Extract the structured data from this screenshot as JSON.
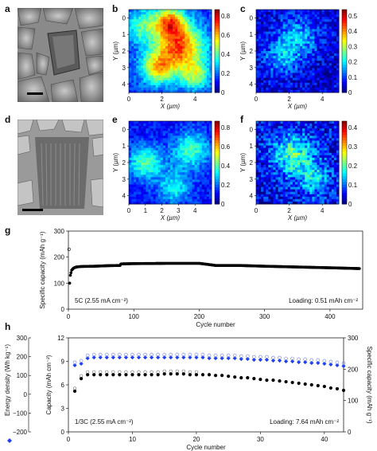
{
  "panels": {
    "a": "a",
    "b": "b",
    "c": "c",
    "d": "d",
    "e": "e",
    "f": "f",
    "g": "g",
    "h": "h"
  },
  "maps": {
    "y_label": "Y (µm)",
    "x_label": "X (µm)",
    "y_ticks": [
      "0",
      "1",
      "2",
      "3",
      "4"
    ],
    "x_ticks": [
      "0",
      "2",
      "4"
    ],
    "x_ticks_e": [
      "0",
      "1",
      "2",
      "3",
      "4"
    ],
    "cb_b": [
      "0.8",
      "0.6",
      "0.4",
      "0.2",
      "0"
    ],
    "cb_c": [
      "0.5",
      "0.4",
      "0.3",
      "0.2",
      "0.1",
      "0"
    ],
    "cb_e": [
      "0.8",
      "0.6",
      "0.4",
      "0.2",
      "0"
    ],
    "cb_f": [
      "0.4",
      "0.3",
      "0.2",
      "0.1",
      "0"
    ]
  },
  "chart_data": [
    {
      "type": "scatter",
      "panel": "g",
      "xlabel": "Cycle number",
      "ylabel": "Specific capacity (mAh g⁻¹)",
      "xlim": [
        0,
        450
      ],
      "ylim": [
        0,
        300
      ],
      "x_ticks": [
        "0",
        "100",
        "200",
        "300",
        "400"
      ],
      "y_ticks": [
        "0",
        "100",
        "200",
        "300"
      ],
      "annotation_left": "5C (2.55 mA cm⁻²)",
      "annotation_right": "Loading: 0.51 mAh cm⁻²",
      "series": [
        {
          "color": "#000000",
          "x": [
            1,
            2,
            3,
            5,
            8,
            12,
            20,
            40,
            60,
            79,
            80,
            81,
            100,
            150,
            200,
            210,
            225,
            240,
            260,
            300,
            350,
            400,
            445
          ],
          "values": [
            230,
            100,
            130,
            150,
            158,
            162,
            164,
            165,
            167,
            168,
            173,
            174,
            175,
            176,
            176,
            173,
            168,
            168,
            168,
            165,
            162,
            159,
            156
          ]
        }
      ]
    },
    {
      "type": "scatter",
      "panel": "h",
      "xlabel": "Cycle number",
      "ylabel_left": "Energy density (Wh kg⁻¹)",
      "ylabel_mid": "Capacity (mAh cm⁻²)",
      "ylabel_right": "Specific capacity (mAh g⁻¹)",
      "xlim": [
        0,
        43
      ],
      "ylim_capacity": [
        0,
        12
      ],
      "ylim_energy": [
        -200,
        300
      ],
      "ylim_specific": [
        0,
        300
      ],
      "x_ticks": [
        "0",
        "10",
        "20",
        "30",
        "40"
      ],
      "cap_ticks": [
        "0",
        "3",
        "6",
        "9",
        "12"
      ],
      "energy_ticks": [
        "−200",
        "−100",
        "0",
        "100",
        "200",
        "300"
      ],
      "specific_ticks": [
        "0",
        "100",
        "200",
        "300"
      ],
      "annotation_left": "1/3C (2.55 mA cm⁻²)",
      "annotation_right": "Loading: 7.64 mAh cm⁻²",
      "series": [
        {
          "color": "#1f3ff2",
          "x": [
            1,
            2,
            3,
            4,
            5,
            6,
            7,
            8,
            9,
            10,
            11,
            12,
            13,
            14,
            15,
            16,
            17,
            18,
            19,
            20,
            21,
            22,
            23,
            24,
            25,
            26,
            27,
            28,
            29,
            30,
            31,
            32,
            33,
            34,
            35,
            36,
            37,
            38,
            39,
            40,
            41,
            42,
            43
          ],
          "values": [
            8.5,
            8.7,
            9.4,
            9.5,
            9.5,
            9.5,
            9.5,
            9.5,
            9.5,
            9.5,
            9.5,
            9.5,
            9.5,
            9.5,
            9.5,
            9.5,
            9.5,
            9.5,
            9.5,
            9.5,
            9.5,
            9.4,
            9.4,
            9.4,
            9.4,
            9.4,
            9.3,
            9.3,
            9.2,
            9.2,
            9.2,
            9.1,
            9.1,
            9.0,
            9.0,
            8.9,
            8.9,
            8.8,
            8.8,
            8.7,
            8.6,
            8.5,
            8.4
          ]
        },
        {
          "color": "#000000",
          "x": [
            1,
            2,
            3,
            4,
            5,
            6,
            7,
            8,
            9,
            10,
            11,
            12,
            13,
            14,
            15,
            16,
            17,
            18,
            19,
            20,
            21,
            22,
            23,
            24,
            25,
            26,
            27,
            28,
            29,
            30,
            31,
            32,
            33,
            34,
            35,
            36,
            37,
            38,
            39,
            40,
            41,
            42,
            43
          ],
          "values": [
            5.2,
            6.8,
            7.3,
            7.3,
            7.3,
            7.3,
            7.3,
            7.3,
            7.3,
            7.3,
            7.3,
            7.3,
            7.3,
            7.3,
            7.4,
            7.4,
            7.4,
            7.4,
            7.3,
            7.3,
            7.3,
            7.3,
            7.2,
            7.2,
            7.1,
            7.0,
            6.9,
            6.9,
            6.8,
            6.7,
            6.6,
            6.6,
            6.5,
            6.4,
            6.3,
            6.2,
            6.1,
            6.0,
            5.9,
            5.8,
            5.6,
            5.5,
            5.3
          ]
        }
      ]
    }
  ]
}
